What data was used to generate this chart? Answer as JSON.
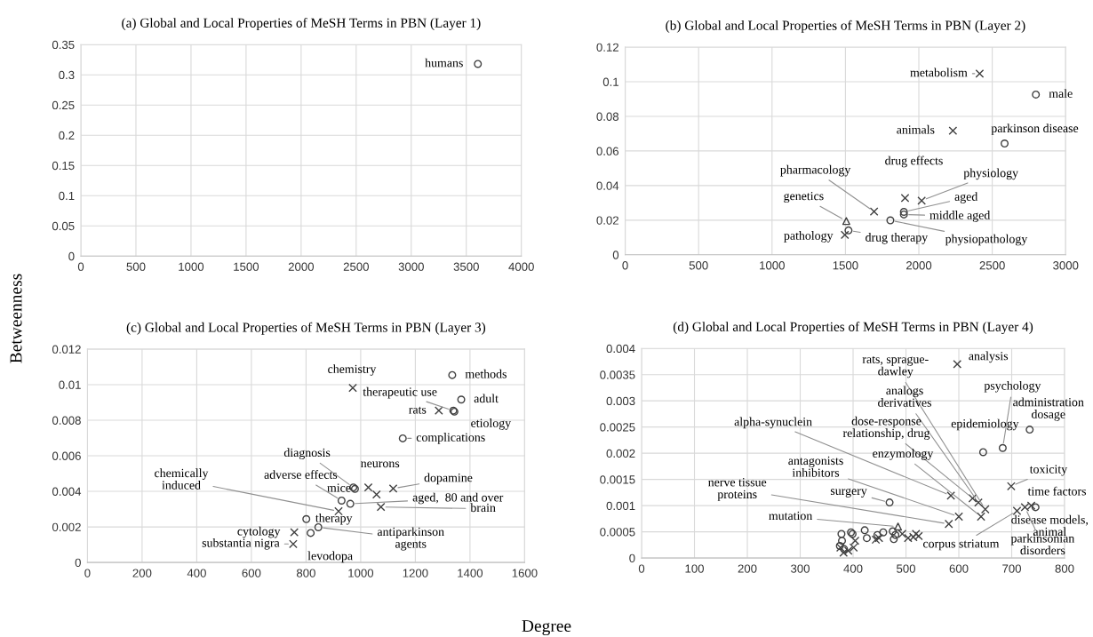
{
  "chart_data": [
    {
      "type": "scatter",
      "title": "(a) Global and Local Properties of MeSH Terms in PBN (Layer 1)",
      "ylabel": "Betweenness",
      "xlim": [
        0,
        4000
      ],
      "ylim": [
        0,
        0.35
      ],
      "xticks": [
        0,
        500,
        1000,
        1500,
        2000,
        2500,
        3000,
        3500,
        4000
      ],
      "yticks": [
        0,
        0.05,
        0.1,
        0.15,
        0.2,
        0.25,
        0.3,
        0.35
      ],
      "grid": true,
      "series": [
        {
          "marker": "circle",
          "color": "#404040",
          "x": [
            3605
          ],
          "values": [
            0.318
          ]
        }
      ],
      "annotations": [
        {
          "text": "humans",
          "x": 3605,
          "y": 0.318
        }
      ]
    },
    {
      "type": "scatter",
      "title": "(b) Global and Local Properties of MeSH Terms in PBN (Layer 2)",
      "xlim": [
        0,
        3000
      ],
      "ylim": [
        0,
        0.12
      ],
      "xticks": [
        0,
        500,
        1000,
        1500,
        2000,
        2500,
        3000
      ],
      "yticks": [
        0,
        0.02,
        0.04,
        0.06,
        0.08,
        0.1,
        0.12
      ],
      "grid": true,
      "series": [
        {
          "marker": "circle",
          "color": "#404040",
          "x": [
            2797,
            2584,
            1898,
            1898,
            1806,
            1521
          ],
          "values": [
            0.0926,
            0.0643,
            0.0248,
            0.0233,
            0.0199,
            0.0141
          ]
        },
        {
          "marker": "cross",
          "color": "#404040",
          "x": [
            2414,
            2232,
            1906,
            2019,
            1695,
            1496
          ],
          "values": [
            0.1047,
            0.0717,
            0.0328,
            0.0313,
            0.025,
            0.0115
          ]
        },
        {
          "marker": "triangle",
          "color": "#404040",
          "x": [
            1506
          ],
          "values": [
            0.0195
          ]
        }
      ],
      "annotations": [
        {
          "text": "metabolism",
          "x": 2414,
          "y": 0.1047
        },
        {
          "text": "male",
          "x": 2797,
          "y": 0.0926
        },
        {
          "text": "animals",
          "x": 2232,
          "y": 0.0717
        },
        {
          "text": "parkinson disease",
          "x": 2584,
          "y": 0.0643
        },
        {
          "text": "drug effects",
          "x": 1906,
          "y": 0.0328
        },
        {
          "text": "physiology",
          "x": 2019,
          "y": 0.0313
        },
        {
          "text": "aged",
          "x": 1898,
          "y": 0.0248
        },
        {
          "text": "middle aged",
          "x": 1898,
          "y": 0.0233
        },
        {
          "text": "pharmacology",
          "x": 1695,
          "y": 0.025
        },
        {
          "text": "physiopathology",
          "x": 1806,
          "y": 0.0199
        },
        {
          "text": "genetics",
          "x": 1506,
          "y": 0.0195
        },
        {
          "text": "drug therapy",
          "x": 1521,
          "y": 0.0141
        },
        {
          "text": "pathology",
          "x": 1496,
          "y": 0.0115
        }
      ]
    },
    {
      "type": "scatter",
      "title": "(c) Global and Local Properties of MeSH Terms in PBN (Layer 3)",
      "xlabel": "Degree",
      "xlim": [
        0,
        1600
      ],
      "ylim": [
        0,
        0.012
      ],
      "xticks": [
        0,
        200,
        400,
        600,
        800,
        1000,
        1200,
        1400,
        1600
      ],
      "yticks": [
        0,
        0.002,
        0.004,
        0.006,
        0.008,
        0.01,
        0.012
      ],
      "grid": true,
      "series": [
        {
          "marker": "circle",
          "color": "#404040",
          "x": [
            1335,
            1368,
            1339,
            1343,
            1154,
            973,
            979,
            930,
            962,
            801,
            845,
            817
          ],
          "values": [
            0.01054,
            0.00916,
            0.00854,
            0.00848,
            0.00698,
            0.00422,
            0.00414,
            0.00348,
            0.0033,
            0.00244,
            0.00198,
            0.00166
          ]
        },
        {
          "marker": "cross",
          "color": "#404040",
          "x": [
            971,
            1286,
            1028,
            1058,
            1119,
            919,
            1074,
            757,
            753
          ],
          "values": [
            0.00982,
            0.00854,
            0.00422,
            0.00382,
            0.00416,
            0.00288,
            0.00312,
            0.0017,
            0.00104
          ]
        }
      ],
      "annotations": [
        {
          "text": "chemistry",
          "x": 971,
          "y": 0.00982
        },
        {
          "text": "methods",
          "x": 1335,
          "y": 0.01054
        },
        {
          "text": "adult",
          "x": 1368,
          "y": 0.00916
        },
        {
          "text": "rats",
          "x": 1286,
          "y": 0.00854
        },
        {
          "text": "therapeutic use",
          "x": 1339,
          "y": 0.00854
        },
        {
          "text": "etiology",
          "x": 1343,
          "y": 0.00848
        },
        {
          "text": "complications",
          "x": 1154,
          "y": 0.00698
        },
        {
          "text": "diagnosis",
          "x": 973,
          "y": 0.00422
        },
        {
          "text": "mice",
          "x": 979,
          "y": 0.00414
        },
        {
          "text": "neurons",
          "x": 1058,
          "y": 0.00382
        },
        {
          "text": "dopamine",
          "x": 1119,
          "y": 0.00416
        },
        {
          "text": "adverse effects",
          "x": 930,
          "y": 0.00348
        },
        {
          "text": "aged,  80 and over",
          "x": 962,
          "y": 0.0033
        },
        {
          "text": "chemically\ninduced",
          "x": 919,
          "y": 0.00288
        },
        {
          "text": "brain",
          "x": 1074,
          "y": 0.00312
        },
        {
          "text": "therapy",
          "x": 801,
          "y": 0.00244
        },
        {
          "text": "antiparkinson\nagents",
          "x": 845,
          "y": 0.00198
        },
        {
          "text": "levodopa",
          "x": 817,
          "y": 0.00166
        },
        {
          "text": "cytology",
          "x": 757,
          "y": 0.0017
        },
        {
          "text": "substantia nigra",
          "x": 753,
          "y": 0.00104
        }
      ]
    },
    {
      "type": "scatter",
      "title": "(d) Global and Local Properties of MeSH Terms in PBN (Layer 4)",
      "xlim": [
        0,
        800
      ],
      "ylim": [
        0,
        0.004
      ],
      "xticks": [
        0,
        100,
        200,
        300,
        400,
        500,
        600,
        700,
        800
      ],
      "yticks": [
        0,
        0.0005,
        0.001,
        0.0015,
        0.002,
        0.0025,
        0.003,
        0.0035,
        0.004
      ],
      "grid": true,
      "series": [
        {
          "marker": "circle",
          "color": "#404040",
          "x": [
            646,
            683,
            734,
            745,
            469,
            378,
            379,
            396,
            399,
            422,
            426,
            446,
            457,
            475,
            477,
            480,
            375,
            383
          ],
          "values": [
            0.00202,
            0.0021,
            0.00245,
            0.00097,
            0.00106,
            0.00046,
            0.00033,
            0.00049,
            0.00046,
            0.00053,
            0.00038,
            0.00044,
            0.00049,
            0.00051,
            0.00036,
            0.00044,
            0.00023,
            0.00017
          ]
        },
        {
          "marker": "cross",
          "color": "#404040",
          "x": [
            597,
            626,
            637,
            650,
            642,
            699,
            710,
            725,
            737,
            585,
            600,
            581,
            376,
            382,
            391,
            404,
            443,
            449,
            493,
            504,
            519,
            524,
            514,
            401
          ],
          "values": [
            0.0037,
            0.00114,
            0.00106,
            0.00093,
            0.00079,
            0.00137,
            0.0009,
            0.00097,
            0.001,
            0.00119,
            0.00079,
            0.00065,
            0.0002,
            0.0001,
            0.00014,
            0.00033,
            0.00035,
            0.00038,
            0.00046,
            0.00038,
            0.00046,
            0.00042,
            0.0004,
            0.0002
          ]
        },
        {
          "marker": "triangle",
          "color": "#404040",
          "x": [
            485
          ],
          "values": [
            0.0006
          ]
        }
      ],
      "annotations": [
        {
          "text": "analysis",
          "x": 597,
          "y": 0.0037
        },
        {
          "text": "rats, sprague-\ndawley",
          "x": 650,
          "y": 0.00093
        },
        {
          "text": "analogs\nderivatives",
          "x": 637,
          "y": 0.00106
        },
        {
          "text": "dose-response\nrelationship, drug",
          "x": 626,
          "y": 0.00114
        },
        {
          "text": "enzymology",
          "x": 642,
          "y": 0.00079
        },
        {
          "text": "epidemiology",
          "x": 646,
          "y": 0.00202
        },
        {
          "text": "psychology",
          "x": 683,
          "y": 0.0021
        },
        {
          "text": "administration\ndosage",
          "x": 734,
          "y": 0.00245
        },
        {
          "text": "toxicity",
          "x": 699,
          "y": 0.00137
        },
        {
          "text": "time factors",
          "x": 737,
          "y": 0.001
        },
        {
          "text": "disease models,\nanimal",
          "x": 745,
          "y": 0.00097
        },
        {
          "text": "parkinsonian\ndisorders",
          "x": 725,
          "y": 0.00097
        },
        {
          "text": "corpus striatum",
          "x": 710,
          "y": 0.0009
        },
        {
          "text": "alpha-synuclein",
          "x": 585,
          "y": 0.00119
        },
        {
          "text": "antagonists\ninhibitors",
          "x": 600,
          "y": 0.00079
        },
        {
          "text": "nerve tissue\nproteins",
          "x": 581,
          "y": 0.00065
        },
        {
          "text": "surgery",
          "x": 469,
          "y": 0.00106
        },
        {
          "text": "mutation",
          "x": 485,
          "y": 0.0006
        }
      ]
    }
  ]
}
